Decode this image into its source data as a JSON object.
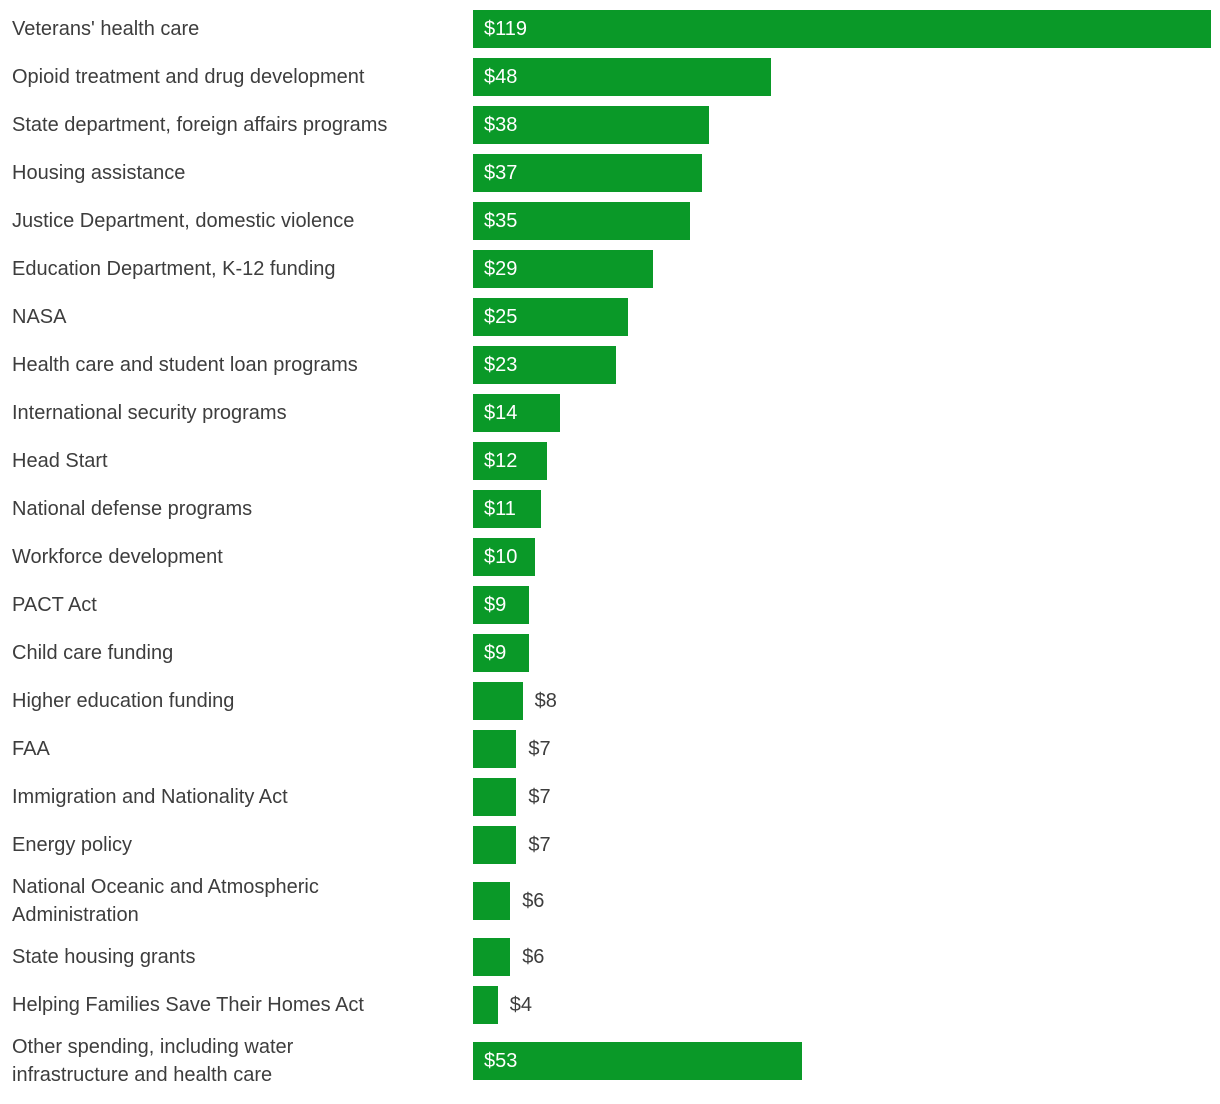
{
  "chart_data": {
    "type": "bar",
    "orientation": "horizontal",
    "title": "",
    "xlabel": "",
    "ylabel": "",
    "grid": false,
    "legend": false,
    "axis_shown": false,
    "xlim": [
      0,
      120
    ],
    "background_color": "#ffffff",
    "bar_color": "#0a9928",
    "category_text_color": "#3d3d3d",
    "value_inside_text_color": "#ffffff",
    "value_outside_text_color": "#3d3d3d",
    "value_prefix": "$",
    "categories": [
      "Veterans' health care",
      "Opioid treatment and drug development",
      "State department, foreign affairs programs",
      "Housing assistance",
      "Justice Department, domestic violence",
      "Education Department, K-12 funding",
      "NASA",
      "Health care and student loan programs",
      "International security programs",
      "Head Start",
      "National defense programs",
      "Workforce development",
      "PACT Act",
      "Child care funding",
      "Higher education funding",
      "FAA",
      "Immigration and Nationality Act",
      "Energy policy",
      "National Oceanic and Atmospheric Administration",
      "State housing grants",
      "Helping Families Save Their Homes Act",
      "Other spending, including water infrastructure and health care"
    ],
    "values": [
      119,
      48,
      38,
      37,
      35,
      29,
      25,
      23,
      14,
      12,
      11,
      10,
      9,
      9,
      8,
      7,
      7,
      7,
      6,
      6,
      4,
      53
    ],
    "rows": [
      {
        "label": "Veterans' health care",
        "value": 119,
        "value_label": "$119"
      },
      {
        "label": "Opioid treatment and drug development",
        "value": 48,
        "value_label": "$48"
      },
      {
        "label": "State department, foreign affairs programs",
        "value": 38,
        "value_label": "$38"
      },
      {
        "label": "Housing assistance",
        "value": 37,
        "value_label": "$37"
      },
      {
        "label": "Justice Department, domestic violence",
        "value": 35,
        "value_label": "$35"
      },
      {
        "label": "Education Department, K-12 funding",
        "value": 29,
        "value_label": "$29"
      },
      {
        "label": "NASA",
        "value": 25,
        "value_label": "$25"
      },
      {
        "label": "Health care and student loan programs",
        "value": 23,
        "value_label": "$23"
      },
      {
        "label": "International security programs",
        "value": 14,
        "value_label": "$14"
      },
      {
        "label": "Head Start",
        "value": 12,
        "value_label": "$12"
      },
      {
        "label": "National defense programs",
        "value": 11,
        "value_label": "$11"
      },
      {
        "label": "Workforce development",
        "value": 10,
        "value_label": "$10"
      },
      {
        "label": "PACT Act",
        "value": 9,
        "value_label": "$9"
      },
      {
        "label": "Child care funding",
        "value": 9,
        "value_label": "$9"
      },
      {
        "label": "Higher education funding",
        "value": 8,
        "value_label": "$8"
      },
      {
        "label": "FAA",
        "value": 7,
        "value_label": "$7"
      },
      {
        "label": "Immigration and Nationality Act",
        "value": 7,
        "value_label": "$7"
      },
      {
        "label": "Energy policy",
        "value": 7,
        "value_label": "$7"
      },
      {
        "label": "National Oceanic and Atmospheric\nAdministration",
        "value": 6,
        "value_label": "$6"
      },
      {
        "label": "State housing grants",
        "value": 6,
        "value_label": "$6"
      },
      {
        "label": "Helping Families Save Their Homes Act",
        "value": 4,
        "value_label": "$4"
      },
      {
        "label": "Other spending, including water\ninfrastructure and health care",
        "value": 53,
        "value_label": "$53"
      }
    ]
  }
}
